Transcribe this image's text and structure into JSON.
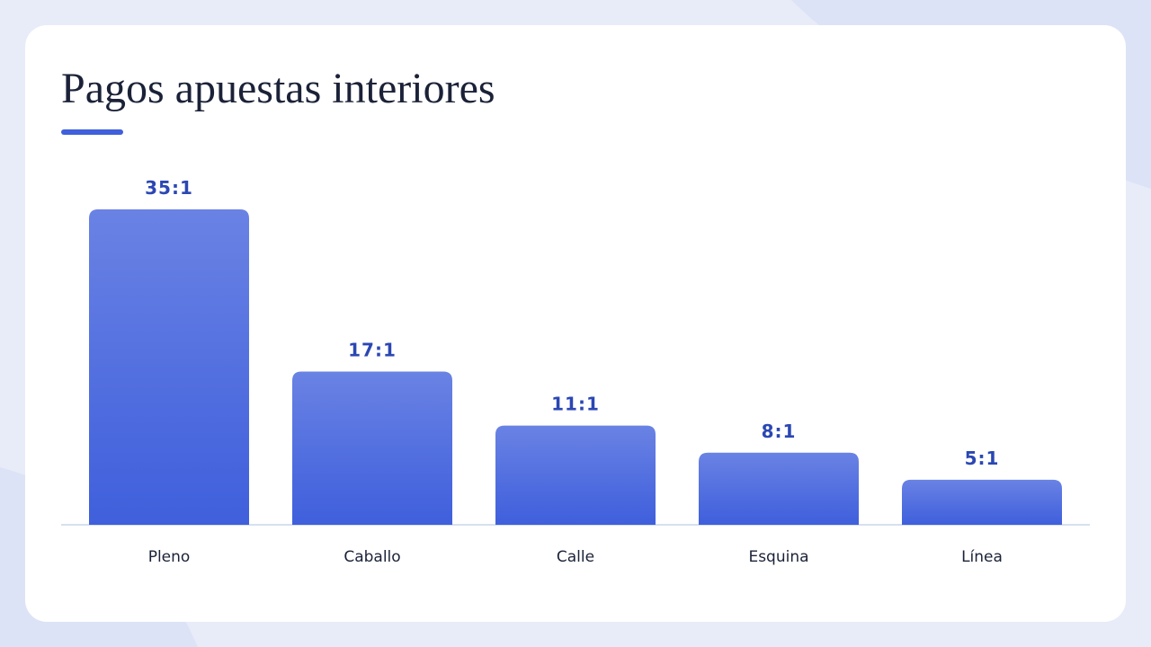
{
  "chart_data": {
    "type": "bar",
    "title": "Pagos apuestas interiores",
    "categories": [
      "Pleno",
      "Caballo",
      "Calle",
      "Esquina",
      "Línea"
    ],
    "values": [
      35,
      17,
      11,
      8,
      5
    ],
    "value_labels": [
      "35:1",
      "17:1",
      "11:1",
      "8:1",
      "5:1"
    ],
    "color": "#3f5fdc"
  }
}
